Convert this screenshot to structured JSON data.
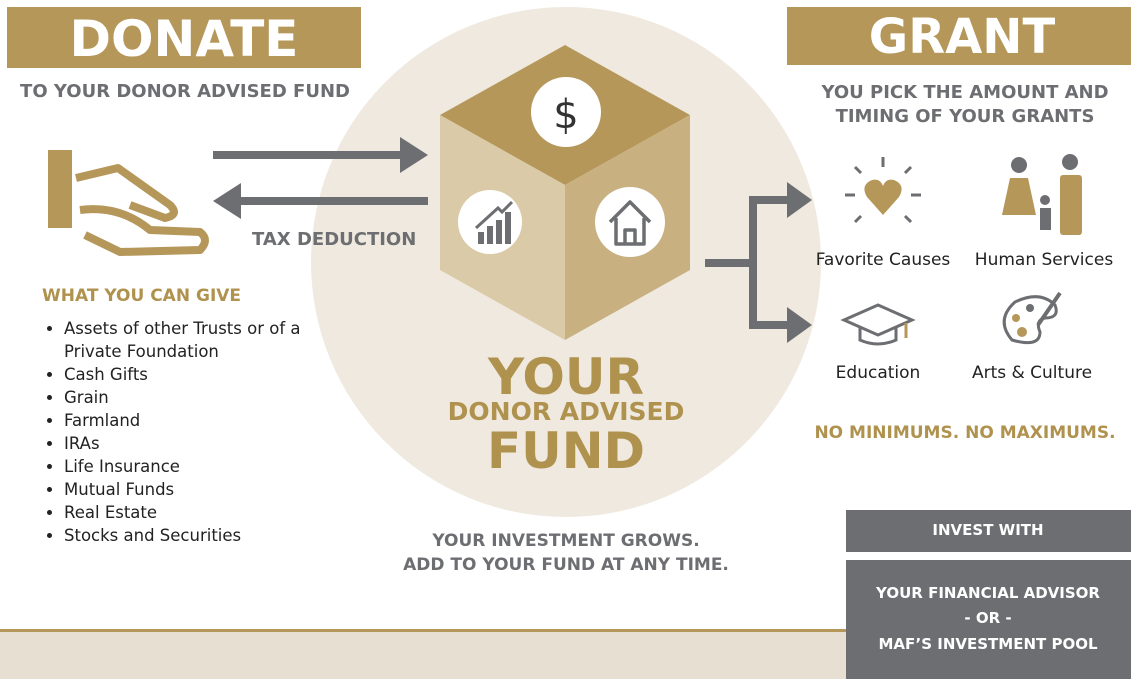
{
  "donate": {
    "title": "DONATE",
    "subtitle": "TO YOUR DONOR ADVISED FUND",
    "tax_deduction": "TAX DEDUCTION",
    "give_heading": "WHAT YOU CAN GIVE",
    "give_items": [
      "Assets of other Trusts or of a Private Foundation",
      "Cash Gifts",
      "Grain",
      "Farmland",
      "IRAs",
      "Life Insurance",
      "Mutual Funds",
      "Real Estate",
      "Stocks and Securities"
    ]
  },
  "fund": {
    "symbol": "$",
    "line1": "YOUR",
    "line2": "DONOR ADVISED",
    "line3": "FUND",
    "note": [
      "YOUR INVESTMENT GROWS.",
      "ADD TO YOUR FUND AT ANY TIME."
    ]
  },
  "grant": {
    "title": "GRANT",
    "subtitle": [
      "YOU PICK THE AMOUNT AND",
      "TIMING OF YOUR GRANTS"
    ],
    "categories": [
      "Favorite Causes",
      "Human Services",
      "Education",
      "Arts & Culture"
    ],
    "tagline": "NO MINIMUMS. NO MAXIMUMS."
  },
  "invest": {
    "heading": "INVEST WITH",
    "options": [
      "YOUR FINANCIAL ADVISOR",
      "- OR -",
      "MAF’S INVESTMENT POOL"
    ]
  }
}
